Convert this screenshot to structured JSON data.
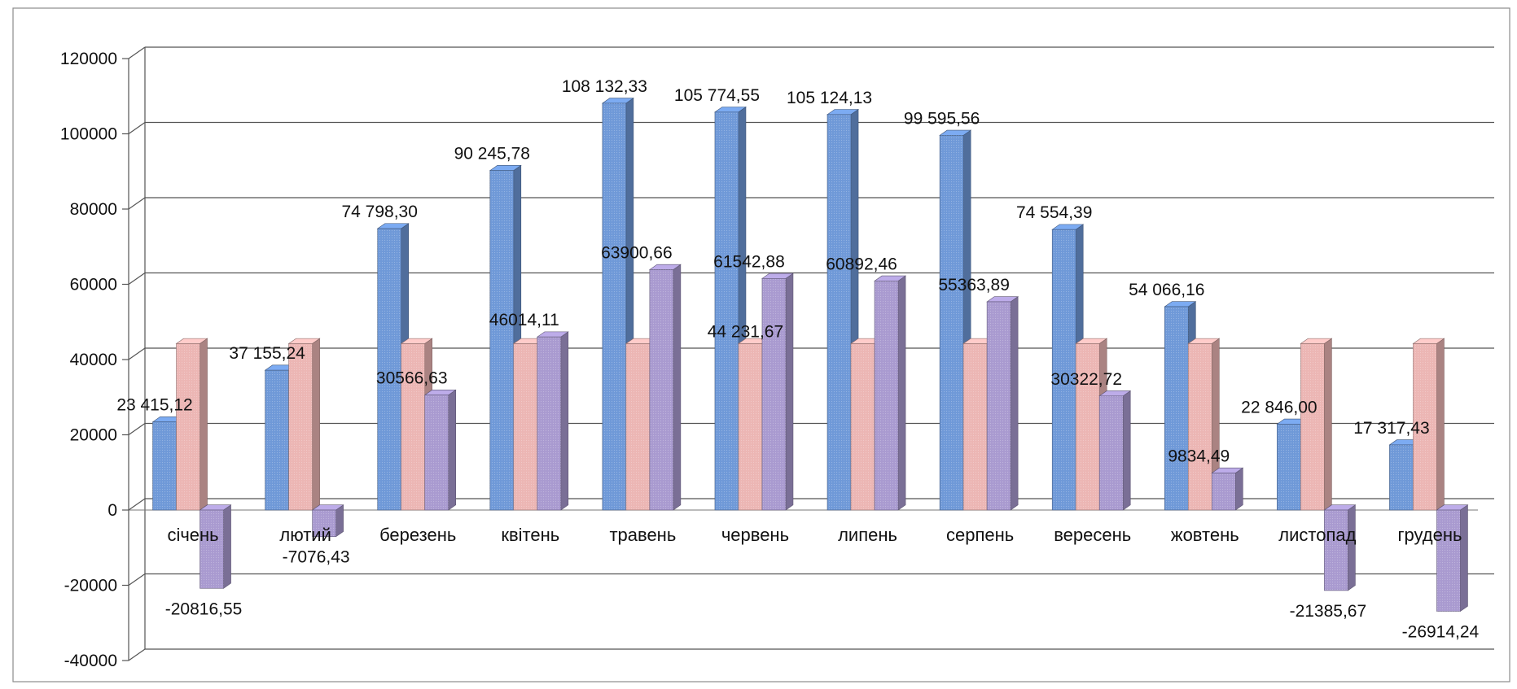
{
  "chart_data": {
    "type": "bar",
    "style": "3d-clustered-column",
    "categories": [
      "січень",
      "лютий",
      "березень",
      "квітень",
      "травень",
      "червень",
      "липень",
      "серпень",
      "вересень",
      "жовтень",
      "листопад",
      "грудень"
    ],
    "series": [
      {
        "color": "#6f99d8",
        "values": [
          23415.12,
          37155.24,
          74798.3,
          90245.78,
          108132.33,
          105774.55,
          105124.13,
          99595.56,
          74554.39,
          54066.16,
          22846.0,
          17317.43
        ],
        "labels": [
          "23 415,12",
          "37 155,24",
          "74 798,30",
          "90 245,78",
          "108 132,33",
          "105 774,55",
          "105 124,13",
          "99 595,56",
          "74 554,39",
          "54 066,16",
          "22 846,00",
          "17 317,43"
        ]
      },
      {
        "color": "#ecb6b4",
        "values": [
          44231.67,
          44231.67,
          44231.67,
          44231.67,
          44231.67,
          44231.67,
          44231.67,
          44231.67,
          44231.67,
          44231.67,
          44231.67,
          44231.67
        ],
        "labels": [
          "",
          "",
          "",
          "",
          "",
          "44 231,67",
          "",
          "",
          "",
          "",
          "",
          ""
        ]
      },
      {
        "color": "#a99ad0",
        "values": [
          -20816.55,
          -7076.43,
          30566.63,
          46014.11,
          63900.66,
          61542.88,
          60892.46,
          55363.89,
          30322.72,
          9834.49,
          -21385.67,
          -26914.24
        ],
        "labels": [
          "-20816,55",
          "-7076,43",
          "30566,63",
          "46014,11",
          "63900,66",
          "61542,88",
          "60892,46",
          "55363,89",
          "30322,72",
          "9834,49",
          "-21385,67",
          "-26914,24"
        ]
      }
    ],
    "ylim": [
      -40000,
      120000
    ],
    "yticks": [
      "-40000",
      "-20000",
      "0",
      "20000",
      "40000",
      "60000",
      "80000",
      "100000",
      "120000"
    ],
    "grid": true,
    "legend": "none"
  }
}
